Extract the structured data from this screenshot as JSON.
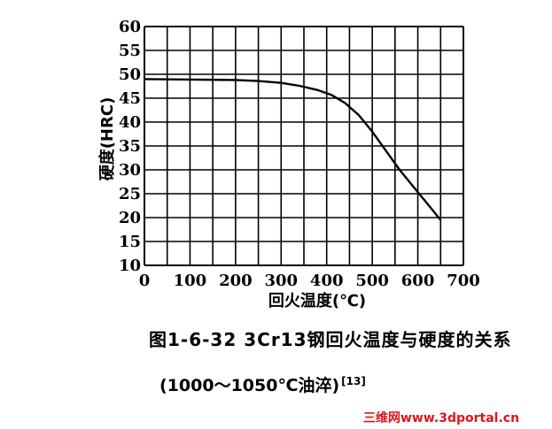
{
  "chart_data": {
    "type": "line",
    "title": "",
    "xlabel": "回火温度(℃)",
    "ylabel": "硬度(HRC)",
    "xlim": [
      0,
      700
    ],
    "ylim": [
      10,
      60
    ],
    "x_ticks": [
      "0",
      "100",
      "200",
      "300",
      "400",
      "500",
      "600",
      "700"
    ],
    "y_ticks": [
      "10",
      "15",
      "20",
      "25",
      "30",
      "35",
      "40",
      "45",
      "50",
      "55",
      "60"
    ],
    "grid": true,
    "series": [
      {
        "x": [
          0,
          100,
          200,
          250,
          300,
          340,
          380,
          410,
          440,
          470,
          500,
          530,
          560,
          590,
          620,
          650
        ],
        "y": [
          49,
          48.9,
          48.8,
          48.6,
          48.2,
          47.6,
          46.7,
          45.7,
          44,
          41.5,
          38,
          34,
          30,
          26.5,
          23,
          19.5
        ]
      }
    ]
  },
  "caption": {
    "line1": "图1-6-32   3Cr13钢回火温度与硬度的关系",
    "line2": "(1000～1050℃油淬)",
    "ref": "[13]"
  },
  "watermark": "三维网www.3dportal.cn",
  "colors": {
    "line": "#000000",
    "grid": "#000000",
    "watermark": "#e0141c"
  }
}
